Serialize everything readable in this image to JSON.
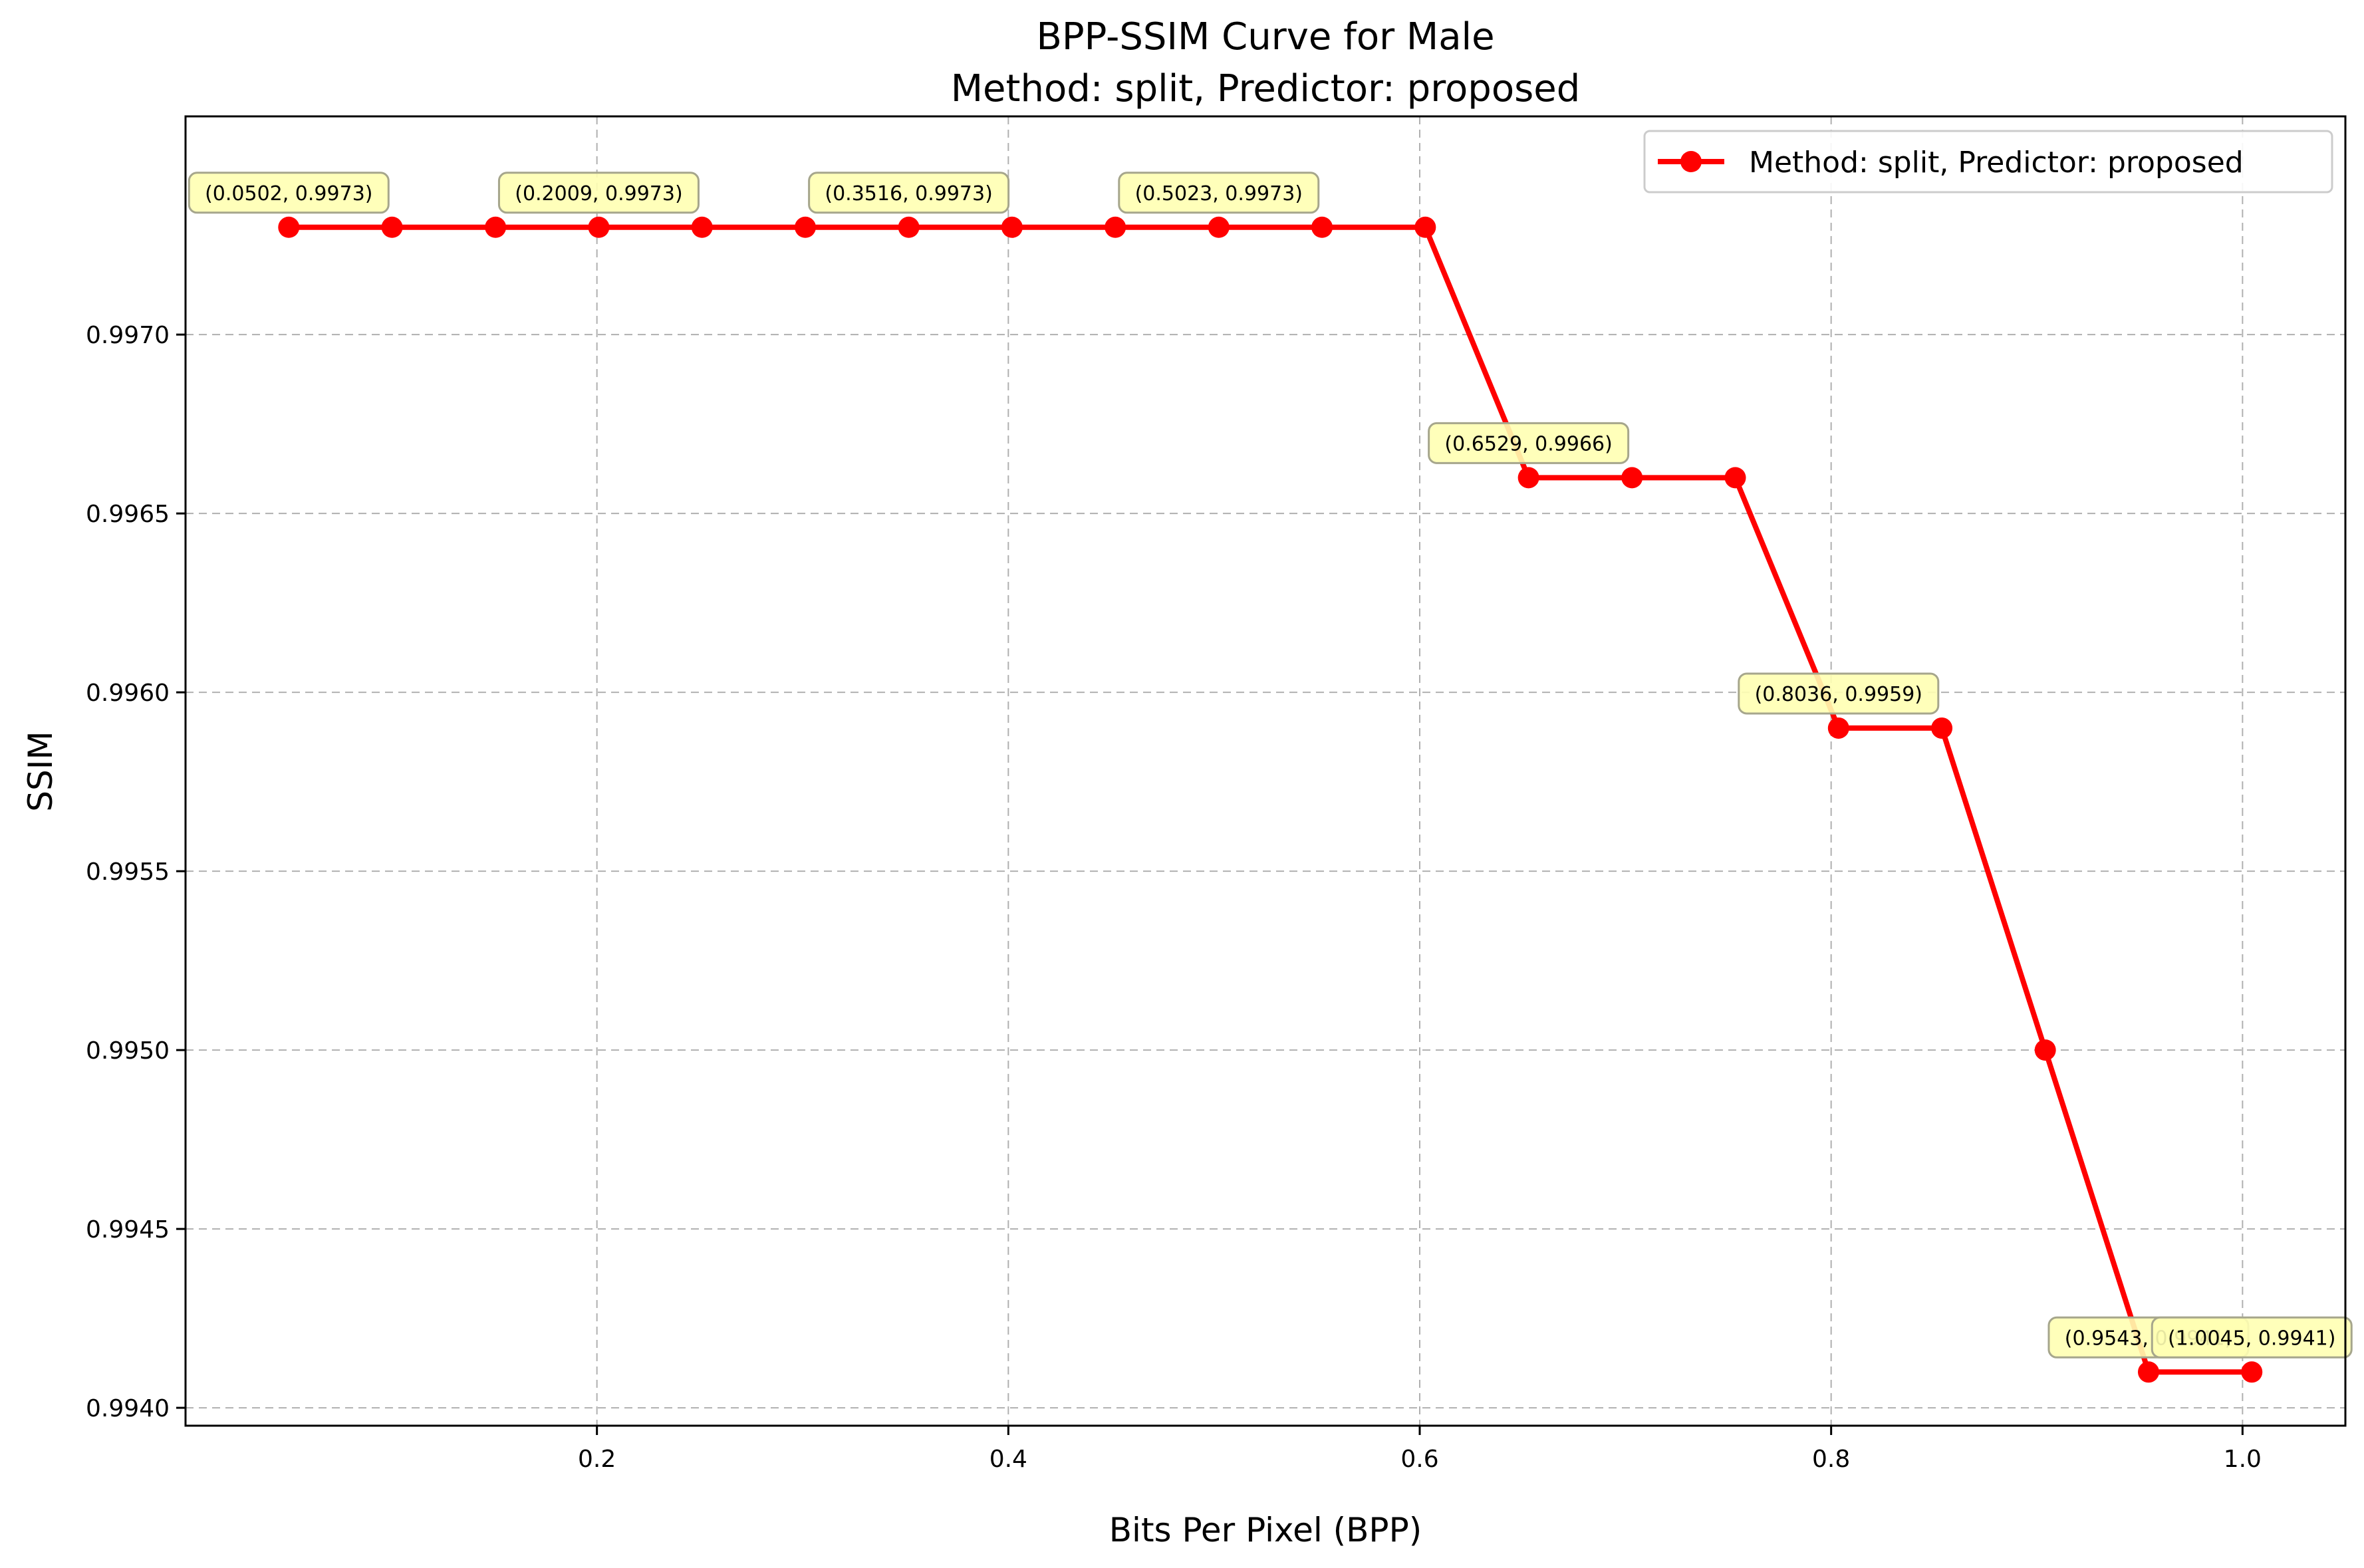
{
  "chart_data": {
    "type": "line",
    "title": "BPP-SSIM Curve for Male",
    "subtitle": "Method: split, Predictor: proposed",
    "xlabel": "Bits Per Pixel (BPP)",
    "ylabel": "SSIM",
    "xlim": [
      0.0,
      1.05
    ],
    "ylim": [
      0.99395,
      0.99761
    ],
    "xticks": [
      0.2,
      0.4,
      0.6,
      0.8,
      1.0
    ],
    "xtick_labels": [
      "0.2",
      "0.4",
      "0.6",
      "0.8",
      "1.0"
    ],
    "yticks": [
      0.994,
      0.9945,
      0.995,
      0.9955,
      0.996,
      0.9965,
      0.997
    ],
    "ytick_labels": [
      "0.9940",
      "0.9945",
      "0.9950",
      "0.9955",
      "0.9960",
      "0.9965",
      "0.9970"
    ],
    "grid": true,
    "legend_position": "top-right",
    "series": [
      {
        "name": "Method: split, Predictor: proposed",
        "color": "#ff0000",
        "x": [
          0.0502,
          0.1004,
          0.1507,
          0.2009,
          0.2511,
          0.3013,
          0.3516,
          0.4018,
          0.452,
          0.5023,
          0.5525,
          0.6027,
          0.6529,
          0.7032,
          0.7534,
          0.8036,
          0.8538,
          0.9041,
          0.9543,
          1.0045
        ],
        "y": [
          0.9973,
          0.9973,
          0.9973,
          0.9973,
          0.9973,
          0.9973,
          0.9973,
          0.9973,
          0.9973,
          0.9973,
          0.9973,
          0.9973,
          0.9966,
          0.9966,
          0.9966,
          0.9959,
          0.9959,
          0.995,
          0.9941,
          0.9941
        ]
      }
    ],
    "annotations": [
      {
        "text": "(0.0502, 0.9973)",
        "x": 0.0502,
        "y": 0.9973
      },
      {
        "text": "(0.2009, 0.9973)",
        "x": 0.2009,
        "y": 0.9973
      },
      {
        "text": "(0.3516, 0.9973)",
        "x": 0.3516,
        "y": 0.9973
      },
      {
        "text": "(0.5023, 0.9973)",
        "x": 0.5023,
        "y": 0.9973
      },
      {
        "text": "(0.6529, 0.9966)",
        "x": 0.6529,
        "y": 0.9966
      },
      {
        "text": "(0.8036, 0.9959)",
        "x": 0.8036,
        "y": 0.9959
      },
      {
        "text": "(0.9543, 0.9941)",
        "x": 0.9543,
        "y": 0.9941
      },
      {
        "text": "(1.0045, 0.9941)",
        "x": 1.0045,
        "y": 0.9941
      }
    ],
    "colors": {
      "annotation_fill": "#ffffb3",
      "annotation_stroke": "#a6a68c",
      "grid": "#b0b0b0"
    }
  }
}
